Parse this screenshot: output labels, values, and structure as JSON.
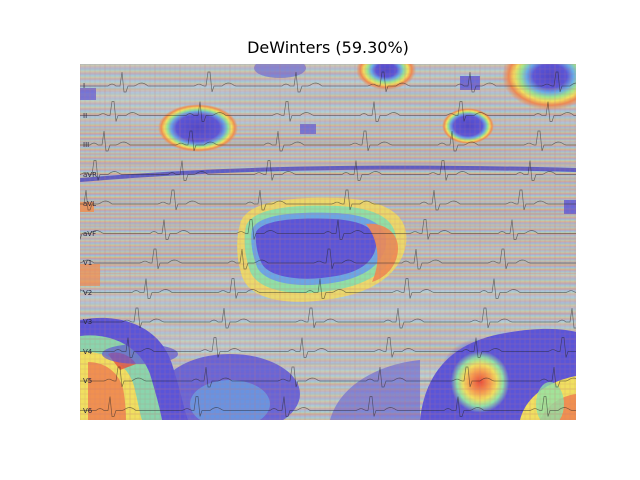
{
  "figure": {
    "title": "DeWinters (59.30%)"
  },
  "ecg": {
    "lead_labels": [
      "I",
      "II",
      "III",
      "aVR",
      "aVL",
      "aVF",
      "V1",
      "V2",
      "V3",
      "V4",
      "V5",
      "V6"
    ]
  },
  "colors": {
    "heatmap_low": "#3a3ad0",
    "heatmap_high": "#e03030",
    "ecg_trace": "#222222",
    "ecg_grid": "#c87878"
  }
}
